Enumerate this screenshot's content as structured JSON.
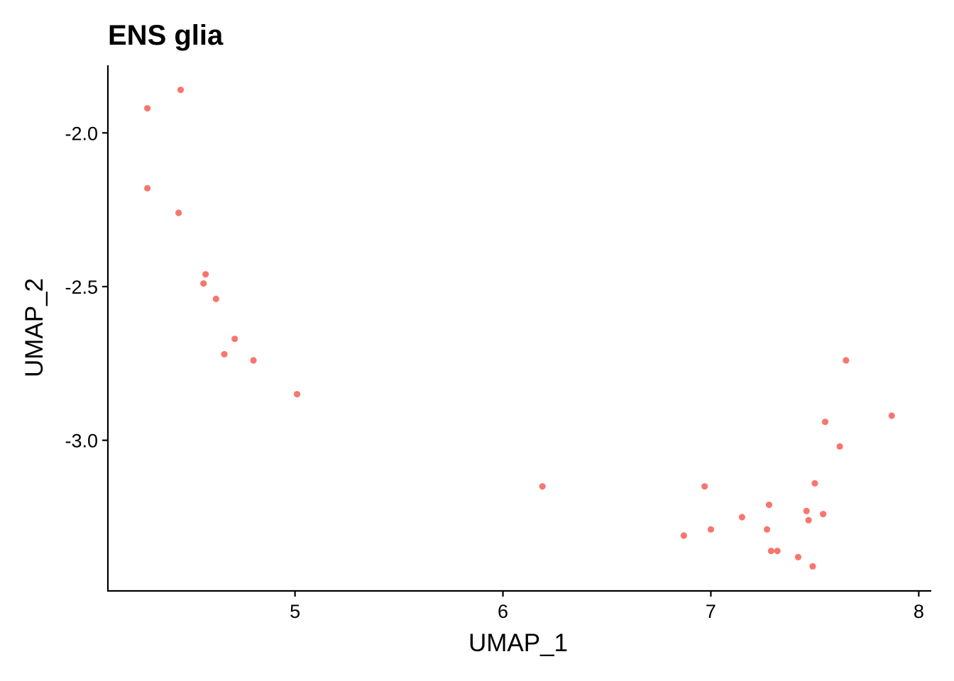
{
  "chart_data": {
    "type": "scatter",
    "title": "ENS glia",
    "xlabel": "UMAP_1",
    "ylabel": "UMAP_2",
    "xlim": [
      4.1,
      8.05
    ],
    "ylim": [
      -3.49,
      -1.78
    ],
    "xticks": [
      5,
      6,
      7,
      8
    ],
    "xtick_labels": [
      "5",
      "6",
      "7",
      "8"
    ],
    "yticks": [
      -2.0,
      -2.5,
      -3.0
    ],
    "ytick_labels": [
      "-2.0",
      "-2.5",
      "-3.0"
    ],
    "grid": false,
    "legend": "none",
    "point_color": "#F8766D",
    "points": [
      {
        "x": 4.29,
        "y": -1.92
      },
      {
        "x": 4.45,
        "y": -1.86
      },
      {
        "x": 4.29,
        "y": -2.18
      },
      {
        "x": 4.44,
        "y": -2.26
      },
      {
        "x": 4.57,
        "y": -2.46
      },
      {
        "x": 4.56,
        "y": -2.49
      },
      {
        "x": 4.62,
        "y": -2.54
      },
      {
        "x": 4.71,
        "y": -2.67
      },
      {
        "x": 4.66,
        "y": -2.72
      },
      {
        "x": 4.8,
        "y": -2.74
      },
      {
        "x": 5.01,
        "y": -2.85
      },
      {
        "x": 6.19,
        "y": -3.15
      },
      {
        "x": 6.97,
        "y": -3.15
      },
      {
        "x": 6.87,
        "y": -3.31
      },
      {
        "x": 7.0,
        "y": -3.29
      },
      {
        "x": 7.15,
        "y": -3.25
      },
      {
        "x": 7.28,
        "y": -3.21
      },
      {
        "x": 7.27,
        "y": -3.29
      },
      {
        "x": 7.29,
        "y": -3.36
      },
      {
        "x": 7.32,
        "y": -3.36
      },
      {
        "x": 7.42,
        "y": -3.38
      },
      {
        "x": 7.46,
        "y": -3.23
      },
      {
        "x": 7.47,
        "y": -3.26
      },
      {
        "x": 7.49,
        "y": -3.41
      },
      {
        "x": 7.5,
        "y": -3.14
      },
      {
        "x": 7.54,
        "y": -3.24
      },
      {
        "x": 7.55,
        "y": -2.94
      },
      {
        "x": 7.62,
        "y": -3.02
      },
      {
        "x": 7.65,
        "y": -2.74
      },
      {
        "x": 7.87,
        "y": -2.92
      }
    ]
  }
}
